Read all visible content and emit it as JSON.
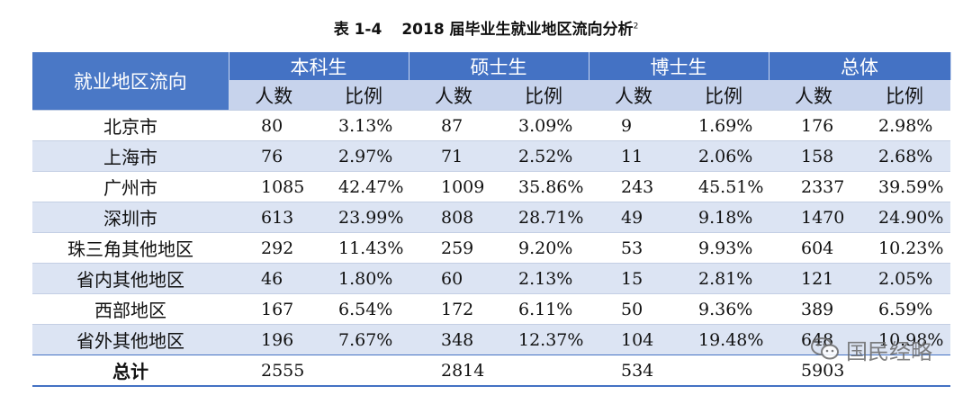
{
  "caption": {
    "number": "表 1-4",
    "title": "2018 届毕业生就业地区流向分析",
    "footnote": "2"
  },
  "table": {
    "corner_header": "就业地区流向",
    "groups": [
      "本科生",
      "硕士生",
      "博士生",
      "总体"
    ],
    "sub_headers": [
      "人数",
      "比例",
      "人数",
      "比例",
      "人数",
      "比例",
      "人数",
      "比例"
    ],
    "rows": [
      {
        "region": "北京市",
        "cells": [
          "80",
          "3.13%",
          "87",
          "3.09%",
          "9",
          "1.69%",
          "176",
          "2.98%"
        ]
      },
      {
        "region": "上海市",
        "cells": [
          "76",
          "2.97%",
          "71",
          "2.52%",
          "11",
          "2.06%",
          "158",
          "2.68%"
        ]
      },
      {
        "region": "广州市",
        "cells": [
          "1085",
          "42.47%",
          "1009",
          "35.86%",
          "243",
          "45.51%",
          "2337",
          "39.59%"
        ]
      },
      {
        "region": "深圳市",
        "cells": [
          "613",
          "23.99%",
          "808",
          "28.71%",
          "49",
          "9.18%",
          "1470",
          "24.90%"
        ]
      },
      {
        "region": "珠三角其他地区",
        "cells": [
          "292",
          "11.43%",
          "259",
          "9.20%",
          "53",
          "9.93%",
          "604",
          "10.23%"
        ]
      },
      {
        "region": "省内其他地区",
        "cells": [
          "46",
          "1.80%",
          "60",
          "2.13%",
          "15",
          "2.81%",
          "121",
          "2.05%"
        ]
      },
      {
        "region": "西部地区",
        "cells": [
          "167",
          "6.54%",
          "172",
          "6.11%",
          "50",
          "9.36%",
          "389",
          "6.59%"
        ]
      },
      {
        "region": "省外其他地区",
        "cells": [
          "196",
          "7.67%",
          "348",
          "12.37%",
          "104",
          "19.48%",
          "648",
          "10.98%"
        ]
      }
    ],
    "total": {
      "region": "总计",
      "cells": [
        "2555",
        "",
        "2814",
        "",
        "534",
        "",
        "5903",
        ""
      ]
    }
  },
  "watermark": {
    "text": "国民经略",
    "icon": "wechat-logo-icon"
  },
  "colors": {
    "header_blue": "#4472c4",
    "subheader": "#c7d3ec",
    "band": "#dce4f3"
  }
}
